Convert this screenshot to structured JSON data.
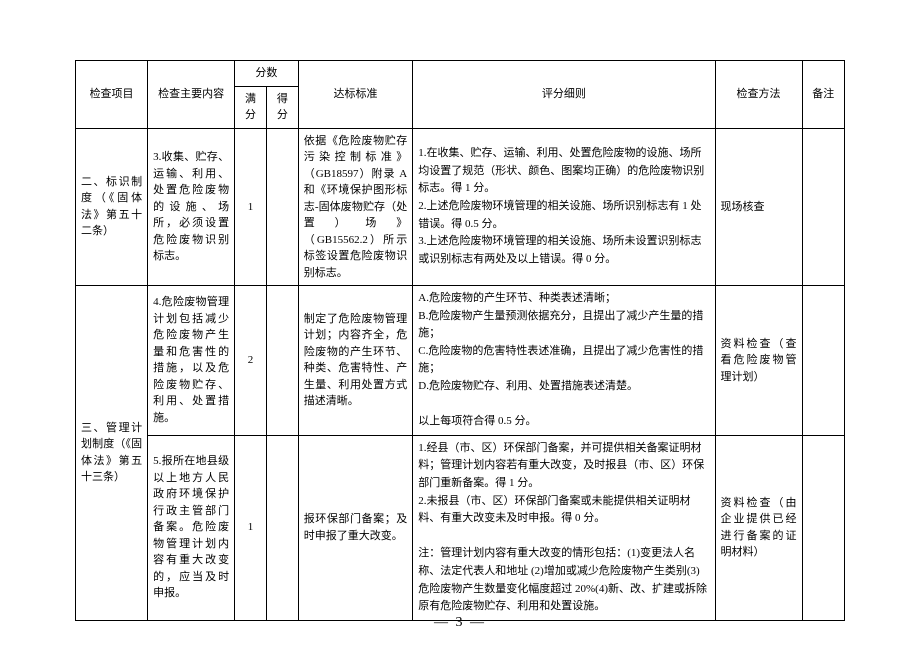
{
  "header": {
    "col1": "检查项目",
    "col2": "检查主要内容",
    "col3_group": "分数",
    "col3a": "满分",
    "col3b": "得分",
    "col4": "达标标准",
    "col5": "评分细则",
    "col6": "检查方法",
    "col7": "备注"
  },
  "rows": [
    {
      "project": "二、标识制度（《固体法》第五十二条）",
      "content": "3.收集、贮存、运输、利用、处置危险废物的设施、场所，必须设置危险废物识别标志。",
      "full_score": "1",
      "got_score": "",
      "standard": "依据《危险废物贮存污染控制标准》（GB18597）附录 A 和《环境保护图形标志-固体废物贮存（处置）场》（GB15562.2）所示标签设置危险废物识别标志。",
      "rules": "1.在收集、贮存、运输、利用、处置危险废物的设施、场所均设置了规范（形状、颜色、图案均正确）的危险废物识别标志。得 1 分。\n2.上述危险废物环境管理的相关设施、场所识别标志有 1 处错误。得 0.5 分。\n3.上述危险废物环境管理的相关设施、场所未设置识别标志或识别标志有两处及以上错误。得 0 分。",
      "method": "现场核查",
      "remark": ""
    },
    {
      "project": "三、管理计划制度（《固体法》第五十三条）",
      "content": "4.危险废物管理计划包括减少危险废物产生量和危害性的措施，以及危险废物贮存、利用、处置措施。",
      "full_score": "2",
      "got_score": "",
      "standard": "制定了危险废物管理计划；内容齐全，危险废物的产生环节、种类、危害特性、产生量、利用处置方式描述清晰。",
      "rules": "A.危险废物的产生环节、种类表述清晰；\nB.危险废物产生量预测依据充分，且提出了减少产生量的措施；\nC.危险废物的危害特性表述准确，且提出了减少危害性的措施；\nD.危险废物贮存、利用、处置措施表述清楚。\n\n以上每项符合得 0.5 分。",
      "method": "资料检查（查看危险废物管理计划）",
      "remark": ""
    },
    {
      "project": "",
      "content": "5.报所在地县级以上地方人民政府环境保护行政主管部门备案。危险废物管理计划内容有重大改变的，应当及时申报。",
      "full_score": "1",
      "got_score": "",
      "standard": "报环保部门备案；及时申报了重大改变。",
      "rules": "1.经县（市、区）环保部门备案，并可提供相关备案证明材料；管理计划内容若有重大改变，及时报县（市、区）环保部门重新备案。得 1 分。\n2.未报县（市、区）环保部门备案或未能提供相关证明材料、有重大改变未及时申报。得 0 分。\n\n注：管理计划内容有重大改变的情形包括：(1)变更法人名称、法定代表人和地址 (2)增加或减少危险废物产生类别(3)危险废物产生数量变化幅度超过 20%(4)新、改、扩建或拆除原有危险废物贮存、利用和处置设施。",
      "method": "资料检查（由企业提供已经进行备案的证明材料）",
      "remark": ""
    }
  ],
  "page_number": "— 3 —"
}
